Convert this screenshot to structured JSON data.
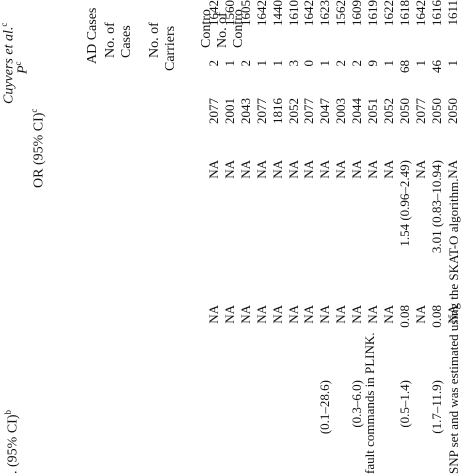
{
  "header": {
    "cuyvers": "Cuyvers et al.",
    "cuyvers_sup": "c",
    "p": "P",
    "p_sup": "c",
    "or": "OR (95% CI)",
    "or_sup": "c",
    "ci_left": ". (95% CI)",
    "ci_left_sup": "b",
    "ad_cases": "AD Cases",
    "num_of_1": "No. of",
    "num_of_2": "No. of",
    "cases": "Cases",
    "carriers": "Carriers",
    "controls_1": "Contro",
    "controls_2": "No. of",
    "controls_3": "Contro"
  },
  "rows": [
    {
      "ci": "",
      "p": "NA",
      "or": "NA",
      "cases": "2050",
      "carriers": "1",
      "controls": "1611"
    },
    {
      "ci": "(1.7–11.9)",
      "p": "0.08",
      "or": "3.01 (0.83–10.94)",
      "cases": "2050",
      "carriers": "46",
      "controls": "1616"
    },
    {
      "ci": "",
      "p": "NA",
      "or": "NA",
      "cases": "2077",
      "carriers": "1",
      "controls": "1642"
    },
    {
      "ci": "(0.5–1.4)",
      "p": "0.08",
      "or": "1.54 (0.96–2.49)",
      "cases": "2050",
      "carriers": "68",
      "controls": "1618"
    },
    {
      "ci": "",
      "p": "NA",
      "or": "NA",
      "cases": "2052",
      "carriers": "1",
      "controls": "1622"
    },
    {
      "ci": "",
      "p": "NA",
      "or": "NA",
      "cases": "2051",
      "carriers": "9",
      "controls": "1619"
    },
    {
      "ci": "(0.3–6.0)",
      "p": "NA",
      "or": "NA",
      "cases": "2044",
      "carriers": "2",
      "controls": "1609"
    },
    {
      "ci": "",
      "p": "NA",
      "or": "NA",
      "cases": "2003",
      "carriers": "2",
      "controls": "1562"
    },
    {
      "ci": "(0.1–28.6)",
      "p": "NA",
      "or": "NA",
      "cases": "2047",
      "carriers": "1",
      "controls": "1623"
    },
    {
      "ci": "",
      "p": "NA",
      "or": "NA",
      "cases": "2077",
      "carriers": "0",
      "controls": "1642"
    },
    {
      "ci": "",
      "p": "NA",
      "or": "NA",
      "cases": "2052",
      "carriers": "3",
      "controls": "1610"
    },
    {
      "ci": "",
      "p": "NA",
      "or": "NA",
      "cases": "1816",
      "carriers": "1",
      "controls": "1440"
    },
    {
      "ci": "",
      "p": "NA",
      "or": "NA",
      "cases": "2077",
      "carriers": "1",
      "controls": "1642"
    },
    {
      "ci": "",
      "p": "NA",
      "or": "NA",
      "cases": "2043",
      "carriers": "2",
      "controls": "1605"
    },
    {
      "ci": "",
      "p": "NA",
      "or": "NA",
      "cases": "2001",
      "carriers": "1",
      "controls": "1560"
    },
    {
      "ci": "",
      "p": "NA",
      "or": "NA",
      "cases": "2077",
      "carriers": "2",
      "controls": "1642"
    }
  ],
  "footnotes": {
    "line1": "fault commands in PLINK.",
    "line2": "SNP set and was estimated using the SKAT-O algorithm."
  }
}
